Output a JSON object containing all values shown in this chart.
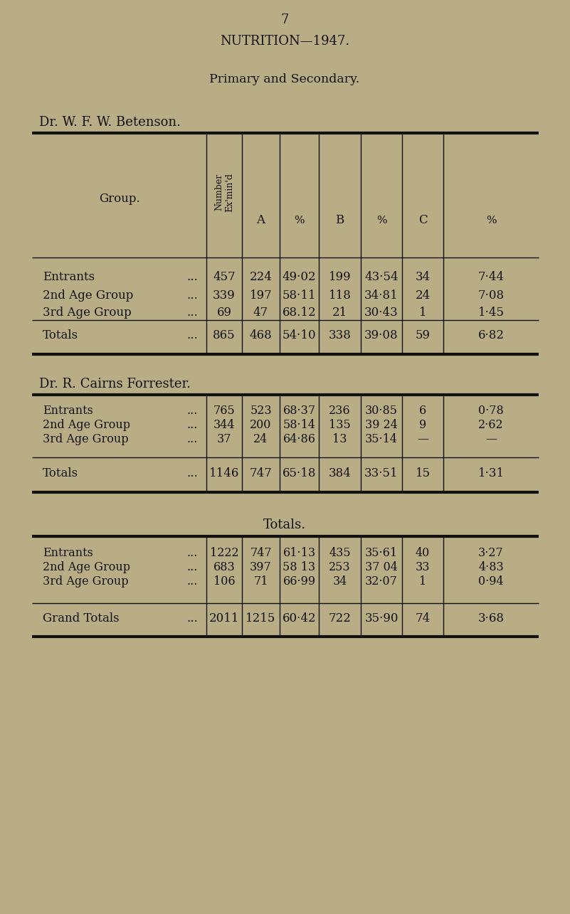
{
  "bg_color": "#b8ad84",
  "text_color": "#111111",
  "page_number": "7",
  "main_title": "NUTRITION—1947.",
  "subtitle": "Primary and Secondary.",
  "s1_title": "Dr. W. F. W. Betenson.",
  "s2_title": "Dr. R. Cairns Forrester.",
  "s3_title": "Totals.",
  "s1_rows": [
    [
      "Entrants",
      "457",
      "224",
      "49·02",
      "199",
      "43·54",
      "34",
      "7·44"
    ],
    [
      "2nd Age Group",
      "339",
      "197",
      "58·11",
      "118",
      "34·81",
      "24",
      "7·08"
    ],
    [
      "3rd Age Group",
      "69",
      "47",
      "68.12",
      "21",
      "30·43",
      "1",
      "1·45"
    ]
  ],
  "s1_total": [
    "Totals",
    "865",
    "468",
    "54·10",
    "338",
    "39·08",
    "59",
    "6·82"
  ],
  "s2_rows": [
    [
      "Entrants",
      "765",
      "523",
      "68·37",
      "236",
      "30·85",
      "6",
      "0·78"
    ],
    [
      "2nd Age Group",
      "344",
      "200",
      "58·14",
      "135",
      "39 24",
      "9",
      "2·62"
    ],
    [
      "3rd Age Group",
      "37",
      "24",
      "64·86",
      "13",
      "35·14",
      "—",
      "—"
    ]
  ],
  "s2_total": [
    "Totals",
    "1146",
    "747",
    "65·18",
    "384",
    "33·51",
    "15",
    "1·31"
  ],
  "s3_rows": [
    [
      "Entrants",
      "1222",
      "747",
      "61·13",
      "435",
      "35·61",
      "40",
      "3·27"
    ],
    [
      "2nd Age Group",
      "683",
      "397",
      "58 13",
      "253",
      "37 04",
      "33",
      "4·83"
    ],
    [
      "3rd Age Group",
      "106",
      "71",
      "66·99",
      "34",
      "32·07",
      "1",
      "0·94"
    ]
  ],
  "s3_total": [
    "Grand Totals",
    "2011",
    "1215",
    "60·42",
    "722",
    "35·90",
    "74",
    "3·68"
  ],
  "col_starts": [
    45,
    290,
    340,
    393,
    448,
    507,
    565,
    623
  ],
  "col_ends": [
    290,
    340,
    393,
    448,
    507,
    565,
    623,
    757
  ]
}
